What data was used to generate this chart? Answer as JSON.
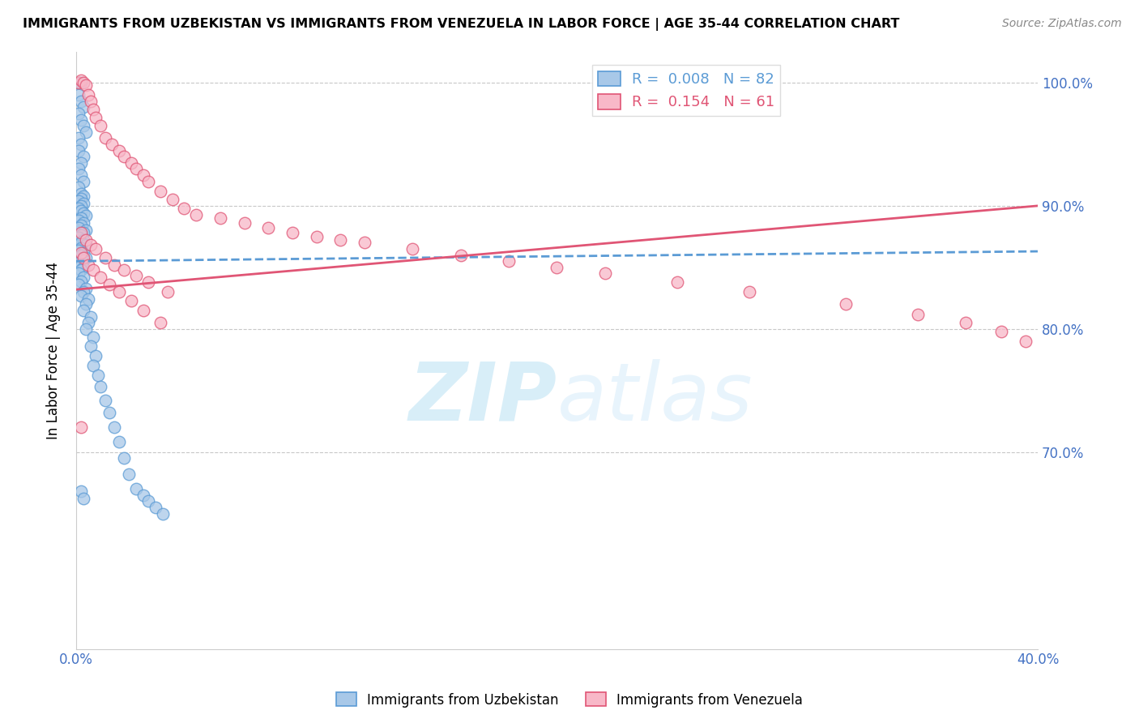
{
  "title": "IMMIGRANTS FROM UZBEKISTAN VS IMMIGRANTS FROM VENEZUELA IN LABOR FORCE | AGE 35-44 CORRELATION CHART",
  "source": "Source: ZipAtlas.com",
  "ylabel": "In Labor Force | Age 35-44",
  "xmin": 0.0,
  "xmax": 0.4,
  "ymin": 0.54,
  "ymax": 1.025,
  "yticks": [
    0.7,
    0.8,
    0.9,
    1.0
  ],
  "ytick_labels": [
    "70.0%",
    "80.0%",
    "90.0%",
    "100.0%"
  ],
  "legend_r_uzb": "R =  0.008",
  "legend_n_uzb": "N = 82",
  "legend_r_ven": "R =  0.154",
  "legend_n_ven": "N = 61",
  "color_uzb_fill": "#a8c8e8",
  "color_uzb_edge": "#5b9bd5",
  "color_ven_fill": "#f8b8c8",
  "color_ven_edge": "#e05575",
  "color_uzb_line": "#5b9bd5",
  "color_ven_line": "#e05575",
  "color_axis_labels": "#4472c4",
  "color_grid": "#c8c8c8",
  "watermark_color": "#d8eef8",
  "background_color": "#ffffff",
  "uzb_x": [
    0.001,
    0.002,
    0.001,
    0.002,
    0.003,
    0.001,
    0.002,
    0.003,
    0.004,
    0.001,
    0.002,
    0.001,
    0.003,
    0.002,
    0.001,
    0.002,
    0.003,
    0.001,
    0.002,
    0.003,
    0.002,
    0.001,
    0.003,
    0.002,
    0.001,
    0.002,
    0.003,
    0.004,
    0.002,
    0.001,
    0.003,
    0.002,
    0.001,
    0.004,
    0.003,
    0.002,
    0.001,
    0.003,
    0.002,
    0.004,
    0.002,
    0.001,
    0.003,
    0.002,
    0.004,
    0.003,
    0.001,
    0.002,
    0.003,
    0.002,
    0.001,
    0.003,
    0.002,
    0.001,
    0.004,
    0.003,
    0.002,
    0.005,
    0.004,
    0.003,
    0.006,
    0.005,
    0.004,
    0.007,
    0.006,
    0.008,
    0.007,
    0.009,
    0.01,
    0.012,
    0.014,
    0.016,
    0.018,
    0.02,
    0.022,
    0.025,
    0.028,
    0.03,
    0.033,
    0.036,
    0.002,
    0.003
  ],
  "uzb_y": [
    1.0,
    1.0,
    0.99,
    0.985,
    0.98,
    0.975,
    0.97,
    0.965,
    0.96,
    0.955,
    0.95,
    0.945,
    0.94,
    0.935,
    0.93,
    0.925,
    0.92,
    0.915,
    0.91,
    0.908,
    0.906,
    0.904,
    0.902,
    0.9,
    0.898,
    0.896,
    0.894,
    0.892,
    0.89,
    0.888,
    0.886,
    0.884,
    0.882,
    0.88,
    0.878,
    0.876,
    0.874,
    0.872,
    0.87,
    0.868,
    0.866,
    0.864,
    0.862,
    0.86,
    0.858,
    0.856,
    0.854,
    0.852,
    0.85,
    0.848,
    0.845,
    0.842,
    0.839,
    0.836,
    0.833,
    0.83,
    0.827,
    0.824,
    0.82,
    0.815,
    0.81,
    0.805,
    0.8,
    0.793,
    0.786,
    0.778,
    0.77,
    0.762,
    0.753,
    0.742,
    0.732,
    0.72,
    0.708,
    0.695,
    0.682,
    0.67,
    0.665,
    0.66,
    0.655,
    0.65,
    0.668,
    0.662
  ],
  "ven_x": [
    0.001,
    0.002,
    0.003,
    0.004,
    0.005,
    0.006,
    0.007,
    0.008,
    0.01,
    0.012,
    0.015,
    0.018,
    0.02,
    0.023,
    0.025,
    0.028,
    0.03,
    0.035,
    0.04,
    0.045,
    0.05,
    0.06,
    0.07,
    0.08,
    0.09,
    0.1,
    0.11,
    0.12,
    0.14,
    0.16,
    0.002,
    0.004,
    0.006,
    0.008,
    0.012,
    0.016,
    0.02,
    0.025,
    0.03,
    0.038,
    0.002,
    0.003,
    0.005,
    0.007,
    0.01,
    0.014,
    0.018,
    0.023,
    0.028,
    0.035,
    0.18,
    0.2,
    0.22,
    0.25,
    0.28,
    0.32,
    0.35,
    0.37,
    0.385,
    0.395,
    0.002
  ],
  "ven_y": [
    1.0,
    1.002,
    1.0,
    0.998,
    0.99,
    0.985,
    0.978,
    0.972,
    0.965,
    0.955,
    0.95,
    0.945,
    0.94,
    0.935,
    0.93,
    0.925,
    0.92,
    0.912,
    0.905,
    0.898,
    0.893,
    0.89,
    0.886,
    0.882,
    0.878,
    0.875,
    0.872,
    0.87,
    0.865,
    0.86,
    0.878,
    0.872,
    0.868,
    0.865,
    0.858,
    0.852,
    0.848,
    0.843,
    0.838,
    0.83,
    0.862,
    0.858,
    0.852,
    0.848,
    0.842,
    0.836,
    0.83,
    0.823,
    0.815,
    0.805,
    0.855,
    0.85,
    0.845,
    0.838,
    0.83,
    0.82,
    0.812,
    0.805,
    0.798,
    0.79,
    0.72
  ],
  "uzb_trendline": [
    0.855,
    0.863
  ],
  "ven_trendline": [
    0.832,
    0.9
  ]
}
